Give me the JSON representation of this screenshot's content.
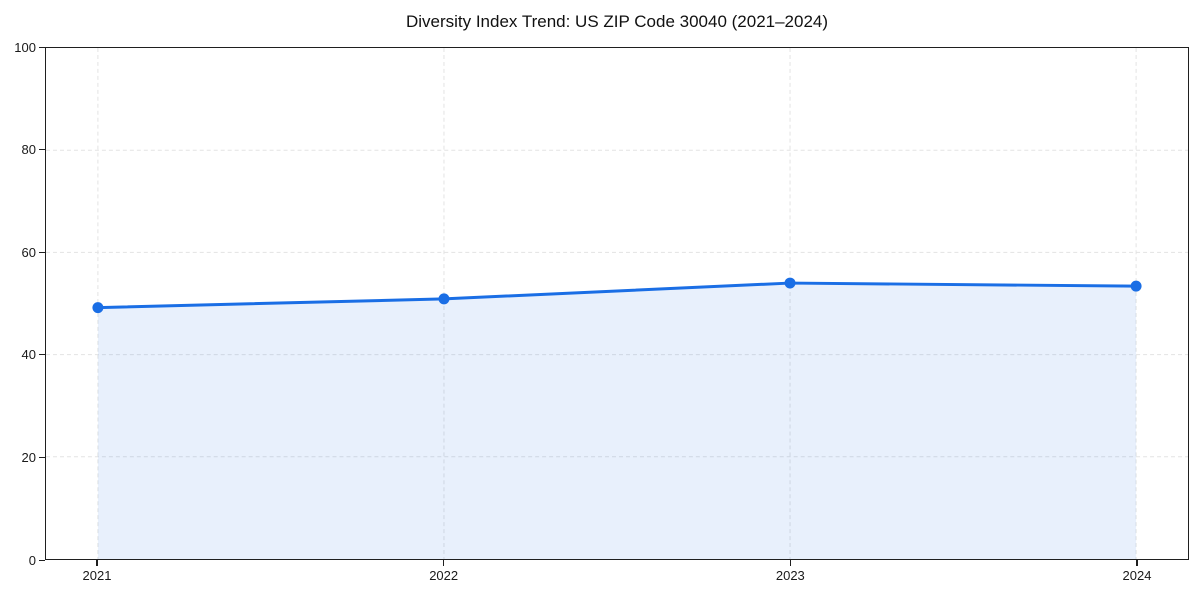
{
  "chart_data": {
    "type": "area",
    "title": "Diversity Index Trend: US ZIP Code 30040 (2021–2024)",
    "categories": [
      "2021",
      "2022",
      "2023",
      "2024"
    ],
    "values": [
      49.2,
      50.9,
      54.0,
      53.4
    ],
    "xlabel": "",
    "ylabel": "",
    "ylim": [
      0,
      100
    ],
    "yticks": [
      0,
      20,
      40,
      60,
      80,
      100
    ],
    "grid": "dashed, horizontal and vertical",
    "legend_position": "none",
    "colors": {
      "line": "#1a6ee5",
      "marker": "#1a6ee5",
      "fill": "rgba(26,110,229,0.10)",
      "grid": "#e3e3e3",
      "spine": "#1f1f1f",
      "text": "#1a1a1a",
      "background": "#ffffff"
    }
  }
}
